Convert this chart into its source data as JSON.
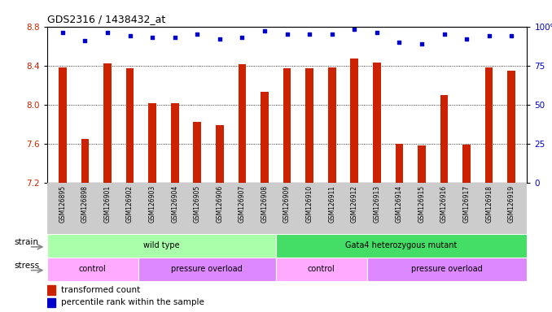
{
  "title": "GDS2316 / 1438432_at",
  "samples": [
    "GSM126895",
    "GSM126898",
    "GSM126901",
    "GSM126902",
    "GSM126903",
    "GSM126904",
    "GSM126905",
    "GSM126906",
    "GSM126907",
    "GSM126908",
    "GSM126909",
    "GSM126910",
    "GSM126911",
    "GSM126912",
    "GSM126913",
    "GSM126914",
    "GSM126915",
    "GSM126916",
    "GSM126917",
    "GSM126918",
    "GSM126919"
  ],
  "bar_values": [
    8.38,
    7.65,
    8.42,
    8.37,
    8.01,
    8.01,
    7.82,
    7.79,
    8.41,
    8.13,
    8.37,
    8.37,
    8.38,
    8.47,
    8.43,
    7.6,
    7.58,
    8.1,
    7.59,
    8.38,
    8.35
  ],
  "percentile_values": [
    96,
    91,
    96,
    94,
    93,
    93,
    95,
    92,
    93,
    97,
    95,
    95,
    95,
    98,
    96,
    90,
    89,
    95,
    92,
    94,
    94
  ],
  "ylim_left": [
    7.2,
    8.8
  ],
  "ylim_right": [
    0,
    100
  ],
  "yticks_left": [
    7.2,
    7.6,
    8.0,
    8.4,
    8.8
  ],
  "yticks_right": [
    0,
    25,
    50,
    75,
    100
  ],
  "bar_color": "#CC2200",
  "percentile_color": "#0000CC",
  "strain_groups": [
    {
      "label": "wild type",
      "start": 0,
      "end": 9,
      "color": "#AAFFAA"
    },
    {
      "label": "Gata4 heterozygous mutant",
      "start": 10,
      "end": 20,
      "color": "#44DD66"
    }
  ],
  "stress_groups": [
    {
      "label": "control",
      "start": 0,
      "end": 3,
      "color": "#FFAAFF"
    },
    {
      "label": "pressure overload",
      "start": 4,
      "end": 9,
      "color": "#DD88FF"
    },
    {
      "label": "control",
      "start": 10,
      "end": 13,
      "color": "#FFAAFF"
    },
    {
      "label": "pressure overload",
      "start": 14,
      "end": 20,
      "color": "#DD88FF"
    }
  ],
  "legend_bar_label": "transformed count",
  "legend_pct_label": "percentile rank within the sample",
  "xtick_bg_color": "#CCCCCC"
}
